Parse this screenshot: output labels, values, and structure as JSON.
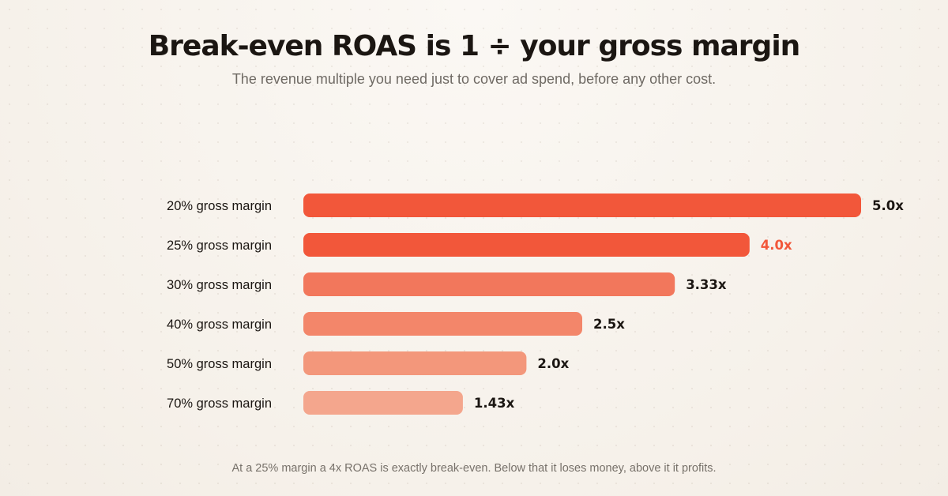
{
  "header": {
    "title": "Break-even ROAS is 1 ÷ your gross margin",
    "subtitle": "The revenue multiple you need just to cover ad spend, before any other cost."
  },
  "footnote": "At a 25% margin a 4x ROAS is exactly break-even. Below that it loses money, above it it profits.",
  "chart_data": {
    "type": "bar",
    "orientation": "horizontal",
    "categories": [
      "20% gross margin",
      "25% gross margin",
      "30% gross margin",
      "40% gross margin",
      "50% gross margin",
      "70% gross margin"
    ],
    "values": [
      5.0,
      4.0,
      3.33,
      2.5,
      2.0,
      1.43
    ],
    "value_labels": [
      "5.0x",
      "4.0x",
      "3.33x",
      "2.5x",
      "2.0x",
      "1.43x"
    ],
    "highlight_index": 1,
    "colors": [
      "#f2573a",
      "#f2573a",
      "#f2775c",
      "#f3866a",
      "#f3977b",
      "#f4a68d"
    ],
    "label_colors": [
      "#1b1612",
      "#f2573a",
      "#1b1612",
      "#1b1612",
      "#1b1612",
      "#1b1612"
    ],
    "xlim": [
      0,
      5.0
    ],
    "grid": false
  }
}
